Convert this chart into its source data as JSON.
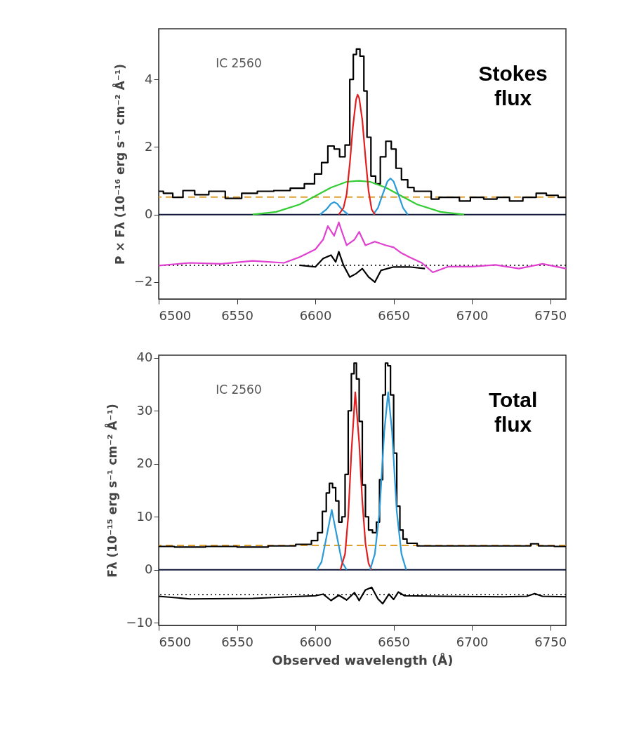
{
  "chart_data": [
    {
      "type": "line",
      "ylabel": "P × Fλ (10⁻¹⁶ erg s⁻¹ cm⁻² Å⁻¹)",
      "annotations": [
        "IC 2560",
        "Stokes\nflux"
      ],
      "xlim": [
        6500,
        6760
      ],
      "xticks": [
        6500,
        6550,
        6600,
        6650,
        6700,
        6750
      ],
      "ylim": [
        -2.5,
        5.5
      ],
      "yticks": [
        -2,
        0,
        2,
        4
      ],
      "grid": false,
      "series": [
        {
          "type": "step",
          "color": "#000000",
          "x": [
            6500,
            6506,
            6512,
            6519,
            6527,
            6537,
            6548,
            6558,
            6568,
            6579,
            6589,
            6597,
            6602,
            6606,
            6610,
            6614,
            6617,
            6621,
            6623,
            6625.5,
            6627,
            6630,
            6632,
            6634,
            6637,
            6640,
            6643,
            6647,
            6650,
            6653,
            6657,
            6661,
            6665,
            6672,
            6676,
            6682,
            6689,
            6695,
            6703,
            6712,
            6720,
            6728,
            6737,
            6745,
            6750,
            6760
          ],
          "values": [
            0.69,
            0.63,
            0.51,
            0.71,
            0.59,
            0.69,
            0.48,
            0.63,
            0.69,
            0.71,
            0.78,
            0.91,
            1.2,
            1.54,
            2.03,
            1.94,
            1.71,
            2.06,
            4.0,
            4.74,
            4.9,
            4.69,
            3.66,
            2.29,
            1.14,
            0.91,
            1.71,
            2.17,
            1.94,
            1.37,
            1.03,
            0.8,
            0.69,
            0.69,
            0.46,
            0.51,
            0.51,
            0.4,
            0.51,
            0.46,
            0.51,
            0.4,
            0.51,
            0.63,
            0.57,
            0.51
          ]
        },
        {
          "type": "line",
          "color": "#33cc33",
          "x": [
            6560,
            6575,
            6590,
            6600,
            6610,
            6620,
            6628,
            6635,
            6645,
            6655,
            6665,
            6680,
            6695
          ],
          "values": [
            0,
            0.08,
            0.3,
            0.55,
            0.8,
            0.97,
            1.0,
            0.97,
            0.8,
            0.55,
            0.3,
            0.08,
            0
          ]
        },
        {
          "type": "line",
          "color": "#2a9ad8",
          "x": [
            6603,
            6607,
            6610,
            6612,
            6614,
            6617,
            6621
          ],
          "values": [
            0,
            0.15,
            0.32,
            0.37,
            0.32,
            0.15,
            0
          ]
        },
        {
          "type": "line",
          "color": "#2a9ad8",
          "x": [
            6637,
            6640,
            6643,
            6646,
            6648,
            6650,
            6653,
            6656,
            6659
          ],
          "values": [
            0,
            0.2,
            0.6,
            0.98,
            1.07,
            0.98,
            0.6,
            0.2,
            0
          ]
        },
        {
          "type": "line",
          "color": "#e02020",
          "x": [
            6615,
            6618,
            6620,
            6622,
            6624,
            6626,
            6627,
            6628,
            6630,
            6632,
            6634,
            6636,
            6638
          ],
          "values": [
            0,
            0.2,
            0.6,
            1.5,
            2.6,
            3.4,
            3.55,
            3.45,
            2.8,
            1.7,
            0.7,
            0.15,
            0
          ]
        },
        {
          "type": "line",
          "color": "#e040d0",
          "x": [
            6500,
            6520,
            6540,
            6560,
            6580,
            6590,
            6600,
            6605,
            6608,
            6612,
            6615,
            6617,
            6620,
            6625,
            6628,
            6632,
            6638,
            6645,
            6650,
            6655,
            6660,
            6668,
            6675,
            6685,
            6700,
            6715,
            6730,
            6745,
            6760
          ],
          "values": [
            -1.51,
            -1.43,
            -1.46,
            -1.37,
            -1.43,
            -1.26,
            -1.03,
            -0.74,
            -0.34,
            -0.63,
            -0.23,
            -0.51,
            -0.91,
            -0.74,
            -0.51,
            -0.91,
            -0.8,
            -0.91,
            -0.97,
            -1.14,
            -1.26,
            -1.43,
            -1.71,
            -1.54,
            -1.54,
            -1.49,
            -1.6,
            -1.46,
            -1.6
          ]
        },
        {
          "type": "line",
          "color": "#000000",
          "x": [
            6590,
            6600,
            6605,
            6610,
            6613,
            6615,
            6618,
            6622,
            6626,
            6630,
            6634,
            6638,
            6642,
            6650,
            6660,
            6670
          ],
          "values": [
            -1.5,
            -1.55,
            -1.3,
            -1.2,
            -1.4,
            -1.1,
            -1.5,
            -1.85,
            -1.75,
            -1.6,
            -1.85,
            -2.0,
            -1.65,
            -1.55,
            -1.55,
            -1.6
          ]
        }
      ],
      "ref_lines": [
        {
          "axis": "y",
          "value": 0,
          "color": "#10183a",
          "line_style": "solid"
        },
        {
          "axis": "y",
          "value": 0.52,
          "color": "#e0a030",
          "line_style": "dashed"
        },
        {
          "axis": "y",
          "value": -1.5,
          "color": "#000000",
          "line_style": "dotted"
        }
      ]
    },
    {
      "type": "line",
      "xlabel": "Observed wavelength (Å)",
      "ylabel": "Fλ (10⁻¹⁵ erg s⁻¹ cm⁻² Å⁻¹)",
      "annotations": [
        "IC 2560",
        "Total\nflux"
      ],
      "xlim": [
        6500,
        6760
      ],
      "xticks": [
        6500,
        6550,
        6600,
        6650,
        6700,
        6750
      ],
      "ylim": [
        -10.5,
        40.5
      ],
      "yticks": [
        -10,
        0,
        10,
        20,
        30,
        40
      ],
      "grid": false,
      "series": [
        {
          "type": "step",
          "color": "#000000",
          "x": [
            6500,
            6520,
            6540,
            6560,
            6580,
            6595,
            6600,
            6603,
            6606,
            6608,
            6610,
            6612,
            6614,
            6616,
            6618,
            6620,
            6622,
            6624,
            6625.5,
            6627,
            6629,
            6631,
            6633,
            6635,
            6638,
            6640,
            6642,
            6644,
            6645.5,
            6647,
            6649,
            6651,
            6653,
            6655,
            6657,
            6660,
            6670,
            6700,
            6735,
            6740,
            6745,
            6760
          ],
          "values": [
            4.4,
            4.3,
            4.4,
            4.3,
            4.5,
            4.8,
            5.5,
            7,
            11,
            14.5,
            16.3,
            15.5,
            13,
            9,
            10,
            18,
            30,
            37,
            39,
            36,
            28,
            16,
            10,
            7.5,
            7,
            9,
            17,
            33,
            39,
            38.5,
            33,
            22,
            12,
            7.5,
            5.8,
            5,
            4.5,
            4.5,
            4.5,
            4.9,
            4.5,
            4.4
          ]
        },
        {
          "type": "line",
          "color": "#2a9ad8",
          "x": [
            6601,
            6604,
            6607,
            6610.5,
            6614,
            6617,
            6620
          ],
          "values": [
            0,
            1.5,
            6,
            11.3,
            6,
            1.5,
            0
          ]
        },
        {
          "type": "line",
          "color": "#e02020",
          "x": [
            6616,
            6619,
            6621,
            6623,
            6625.5,
            6628,
            6630,
            6632,
            6634,
            6636
          ],
          "values": [
            0,
            3,
            10,
            22,
            33.5,
            24,
            13,
            5,
            1.2,
            0
          ]
        },
        {
          "type": "line",
          "color": "#2a9ad8",
          "x": [
            6635,
            6638,
            6641,
            6644,
            6646.5,
            6649,
            6652,
            6655,
            6658
          ],
          "values": [
            0,
            3,
            11,
            26,
            33.5,
            26,
            11,
            3,
            0
          ]
        },
        {
          "type": "line",
          "color": "#000000",
          "x": [
            6500,
            6520,
            6560,
            6600,
            6605,
            6610,
            6615,
            6620,
            6625,
            6628,
            6632,
            6636,
            6640,
            6643,
            6647,
            6650,
            6653,
            6657,
            6680,
            6720,
            6735,
            6740,
            6745,
            6760
          ],
          "values": [
            -5.0,
            -5.5,
            -5.4,
            -4.9,
            -4.6,
            -5.8,
            -4.8,
            -5.7,
            -4.3,
            -5.8,
            -3.8,
            -3.3,
            -5.5,
            -6.4,
            -4.6,
            -5.6,
            -4.2,
            -4.9,
            -5.0,
            -5.1,
            -5.0,
            -4.5,
            -5.0,
            -5.1
          ]
        }
      ],
      "ref_lines": [
        {
          "axis": "y",
          "value": 0,
          "color": "#10183a",
          "line_style": "solid"
        },
        {
          "axis": "y",
          "value": 4.6,
          "color": "#e0a030",
          "line_style": "dashed"
        },
        {
          "axis": "y",
          "value": -4.7,
          "color": "#000000",
          "line_style": "dotted"
        }
      ]
    }
  ]
}
